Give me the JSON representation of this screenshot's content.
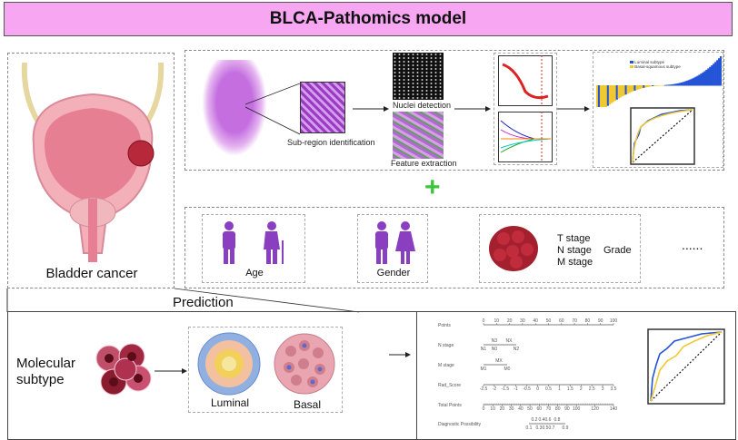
{
  "header": {
    "title": "BLCA-Pathomics model"
  },
  "left_panel": {
    "label": "Bladder cancer"
  },
  "pipeline": {
    "subregion_label": "Sub-region identification",
    "nuclei_label": "Nuclei detection",
    "feature_label": "Feature extraction",
    "waterfall_legend": [
      "Luminal subtype",
      "Basal-squamous subtype"
    ]
  },
  "plus_symbol": "+",
  "clinical": {
    "age_label": "Age",
    "gender_label": "Gender",
    "stages": [
      "T stage",
      "N stage",
      "M stage"
    ],
    "grade_label": "Grade",
    "ellipsis": "......"
  },
  "prediction": {
    "title": "Prediction",
    "molecular_label": "Molecular subtype",
    "luminal_label": "Luminal",
    "basal_label": "Basal"
  },
  "nomogram": {
    "rows": [
      "Points",
      "N stage",
      "M stage",
      "Rad_Score",
      "Total Points",
      "Diagnostic Possibility"
    ],
    "points_ticks": [
      "0",
      "10",
      "20",
      "30",
      "40",
      "50",
      "60",
      "70",
      "80",
      "90",
      "100"
    ],
    "n_stage_top": [
      "N3",
      "NX"
    ],
    "n_stage_bottom": [
      "N1",
      "N0",
      "N2"
    ],
    "m_stage_top": [
      "MX"
    ],
    "m_stage_bottom": [
      "M1",
      "M0"
    ],
    "rad_ticks": [
      "-2.5",
      "-2",
      "-1.5",
      "-1",
      "-0.5",
      "0",
      "0.5",
      "1",
      "1.5",
      "2",
      "2.5",
      "3",
      "3.5"
    ],
    "total_ticks": [
      "0",
      "10",
      "20",
      "30",
      "40",
      "50",
      "60",
      "70",
      "80",
      "90",
      "100",
      "120",
      "140"
    ],
    "diag_top": [
      "0.2",
      "0.4",
      "0.6",
      "0.8"
    ],
    "diag_bottom": [
      "0.1",
      "0.3",
      "0.5",
      "0.7",
      "0.9"
    ]
  },
  "colors": {
    "title_bg": "#f7a6f2",
    "purple": "#8a3fc0",
    "green": "#3cc43c",
    "luminal": "#2553d6",
    "basal": "#f0c830",
    "he_stain": "#b05ad0"
  }
}
